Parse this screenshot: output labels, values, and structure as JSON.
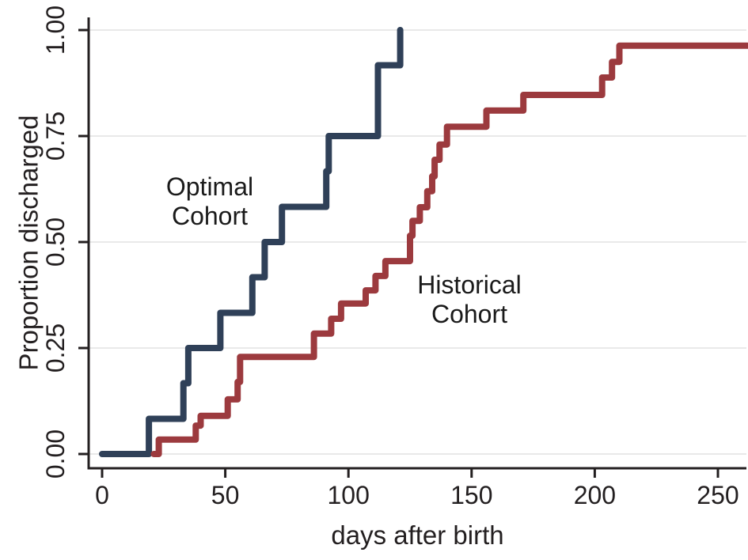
{
  "figure": {
    "background": "#ffffff",
    "axis_color": "#231f20",
    "gridline_color": "#e9e9e9"
  },
  "chart_data": {
    "type": "line",
    "subtype": "kaplan-meier-step",
    "title": "",
    "xlabel": "days after birth",
    "ylabel": "Proportion discharged",
    "xlim": [
      0,
      262
    ],
    "ylim": [
      0,
      1
    ],
    "grid": "horizontal-only",
    "legend_position": "inline-annotations",
    "x_ticks": [
      {
        "label": "0",
        "value": 0
      },
      {
        "label": "50",
        "value": 50
      },
      {
        "label": "100",
        "value": 100
      },
      {
        "label": "150",
        "value": 150
      },
      {
        "label": "200",
        "value": 200
      },
      {
        "label": "250",
        "value": 250
      }
    ],
    "y_ticks": [
      {
        "label": "0.00",
        "value": 0
      },
      {
        "label": "0.25",
        "value": 0.25
      },
      {
        "label": "0.50",
        "value": 0.5
      },
      {
        "label": "0.75",
        "value": 0.75
      },
      {
        "label": "1.00",
        "value": 1
      }
    ],
    "series": [
      {
        "name": "Optimal Cohort",
        "color": "#2f4058",
        "start_day": 0,
        "end_day": 121,
        "steps": [
          [
            19,
            0.083
          ],
          [
            33,
            0.167
          ],
          [
            35,
            0.25
          ],
          [
            48,
            0.333
          ],
          [
            61,
            0.417
          ],
          [
            66,
            0.5
          ],
          [
            73,
            0.583
          ],
          [
            91,
            0.667
          ],
          [
            92,
            0.75
          ],
          [
            112,
            0.917
          ],
          [
            121,
            1.0
          ]
        ]
      },
      {
        "name": "Historical Cohort",
        "color": "#9c3a3e",
        "start_day": 21,
        "end_day": 262,
        "steps": [
          [
            23,
            0.034
          ],
          [
            38,
            0.067
          ],
          [
            40,
            0.09
          ],
          [
            51,
            0.129
          ],
          [
            55,
            0.17
          ],
          [
            56,
            0.229
          ],
          [
            86,
            0.284
          ],
          [
            93,
            0.319
          ],
          [
            97,
            0.355
          ],
          [
            107,
            0.386
          ],
          [
            111,
            0.42
          ],
          [
            115,
            0.455
          ],
          [
            125,
            0.515
          ],
          [
            126,
            0.55
          ],
          [
            129,
            0.582
          ],
          [
            132,
            0.62
          ],
          [
            134,
            0.655
          ],
          [
            135,
            0.694
          ],
          [
            137,
            0.73
          ],
          [
            140,
            0.772
          ],
          [
            156,
            0.81
          ],
          [
            171,
            0.847
          ],
          [
            203,
            0.888
          ],
          [
            207,
            0.925
          ],
          [
            210,
            0.963
          ]
        ]
      }
    ],
    "annotations": [
      {
        "line1": "Optimal",
        "line2": "Cohort",
        "x_day": 43.7,
        "p_baseline": 0.61,
        "series": "Optimal Cohort"
      },
      {
        "line1": "Historical",
        "line2": "Cohort",
        "x_day": 149.1,
        "p_baseline": 0.379,
        "series": "Historical Cohort"
      }
    ]
  }
}
